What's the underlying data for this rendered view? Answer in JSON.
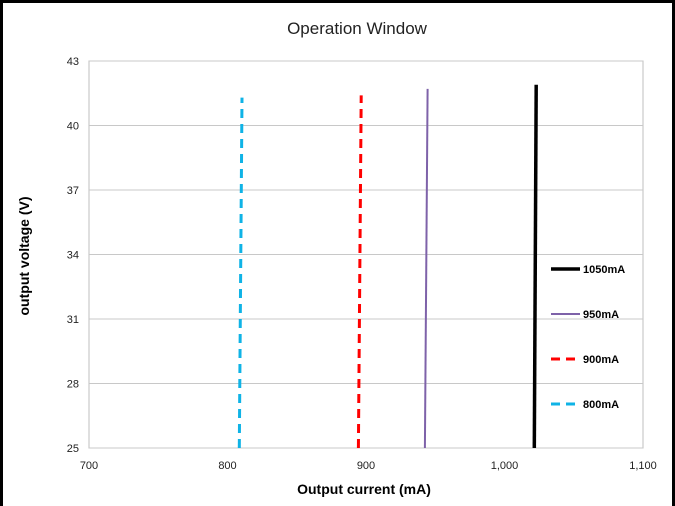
{
  "chart_data": {
    "type": "line",
    "title": "Operation Window",
    "xlabel": "Output current (mA)",
    "ylabel": "output voltage (V)",
    "xlim": [
      700,
      1100
    ],
    "ylim": [
      25,
      43
    ],
    "x_ticks": [
      "700",
      "800",
      "900",
      "1,000",
      "1,100"
    ],
    "y_ticks": [
      "25",
      "28",
      "31",
      "34",
      "37",
      "40",
      "43"
    ],
    "x_tick_values": [
      700,
      800,
      900,
      1000,
      1100
    ],
    "y_tick_values": [
      25,
      28,
      31,
      34,
      37,
      40,
      43
    ],
    "grid": "horizontal",
    "legend_position": "right",
    "series": [
      {
        "name": "1050mA",
        "color": "#000000",
        "dash": "solid",
        "x": [
          1021.5,
          1022.9
        ],
        "y": [
          25.0,
          41.9
        ]
      },
      {
        "name": "950mA",
        "color": "#7e62a9",
        "dash": "solid",
        "x": [
          942.5,
          944.5
        ],
        "y": [
          25.0,
          41.7
        ]
      },
      {
        "name": "900mA",
        "color": "#ff0000",
        "dash": "dashed",
        "x": [
          894.5,
          896.5
        ],
        "y": [
          25.0,
          41.4
        ]
      },
      {
        "name": "800mA",
        "color": "#0fb3e6",
        "dash": "dashed",
        "x": [
          808.5,
          810.5
        ],
        "y": [
          25.0,
          41.3
        ]
      }
    ]
  }
}
